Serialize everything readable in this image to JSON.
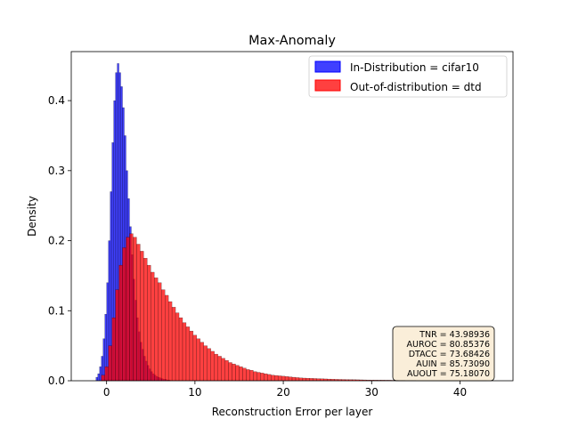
{
  "chart_data": {
    "type": "histogram",
    "title": "Max-Anomaly",
    "xlabel": "Reconstruction Error per layer",
    "ylabel": "Density",
    "xlim": [
      -4.0,
      46.0
    ],
    "ylim": [
      0,
      0.47
    ],
    "xticks": [
      0,
      10,
      20,
      30,
      40
    ],
    "xtick_labels": [
      "0",
      "10",
      "20",
      "30",
      "40"
    ],
    "yticks": [
      0.0,
      0.1,
      0.2,
      0.3,
      0.4
    ],
    "ytick_labels": [
      "0.0",
      "0.1",
      "0.2",
      "0.3",
      "0.4"
    ],
    "grid": false,
    "legend_position": "top-right",
    "series": [
      {
        "name": "In-Distribution = cifar10",
        "color": "#0000ff",
        "opacity": 0.75,
        "bin_start": -1.2,
        "bin_width": 0.2,
        "density": [
          0.005,
          0.01,
          0.02,
          0.035,
          0.06,
          0.095,
          0.14,
          0.2,
          0.27,
          0.34,
          0.4,
          0.44,
          0.453,
          0.44,
          0.42,
          0.39,
          0.35,
          0.3,
          0.26,
          0.22,
          0.18,
          0.145,
          0.115,
          0.09,
          0.07,
          0.055,
          0.045,
          0.035,
          0.028,
          0.022,
          0.017,
          0.013,
          0.01,
          0.008,
          0.006,
          0.005,
          0.004,
          0.003,
          0.002,
          0.002,
          0.001,
          0.001
        ]
      },
      {
        "name": "Out-of-distribution = dtd",
        "color": "#ff0000",
        "opacity": 0.75,
        "bin_start": -0.6,
        "bin_width": 0.4,
        "density": [
          0.008,
          0.02,
          0.05,
          0.09,
          0.13,
          0.165,
          0.19,
          0.205,
          0.21,
          0.205,
          0.195,
          0.185,
          0.175,
          0.165,
          0.155,
          0.147,
          0.14,
          0.13,
          0.122,
          0.113,
          0.105,
          0.097,
          0.09,
          0.083,
          0.077,
          0.071,
          0.065,
          0.06,
          0.055,
          0.05,
          0.046,
          0.042,
          0.038,
          0.035,
          0.032,
          0.029,
          0.026,
          0.024,
          0.022,
          0.02,
          0.018,
          0.016,
          0.015,
          0.013,
          0.012,
          0.011,
          0.01,
          0.009,
          0.008,
          0.0075,
          0.007,
          0.0065,
          0.006,
          0.0055,
          0.005,
          0.0045,
          0.004,
          0.0038,
          0.0036,
          0.0034,
          0.0032,
          0.003,
          0.0028,
          0.0026,
          0.0024,
          0.0022,
          0.002,
          0.0019,
          0.0018,
          0.0017,
          0.0016,
          0.0015,
          0.0014,
          0.0013,
          0.0012,
          0.0011,
          0.001,
          0.001,
          0.0009,
          0.0009,
          0.0008,
          0.0008,
          0.0007,
          0.0007,
          0.0006,
          0.0006,
          0.0005,
          0.0005,
          0.0005,
          0.0004,
          0.0004,
          0.0004,
          0.0003,
          0.0003,
          0.0003,
          0.0003,
          0.0002,
          0.0002,
          0.0002,
          0.0002,
          0.0002,
          0.0001,
          0.0001,
          0.0001,
          0.0001,
          0.0001,
          0.0001,
          0.0001,
          0.0001
        ]
      }
    ],
    "stats_box": {
      "lines": [
        "TNR = 43.98936",
        "AUROC = 80.85376",
        "DTACC = 73.68426",
        "AUIN = 85.73090",
        "AUOUT = 75.18070"
      ],
      "position": "bottom-right",
      "facecolor": "#f5deb3"
    }
  }
}
